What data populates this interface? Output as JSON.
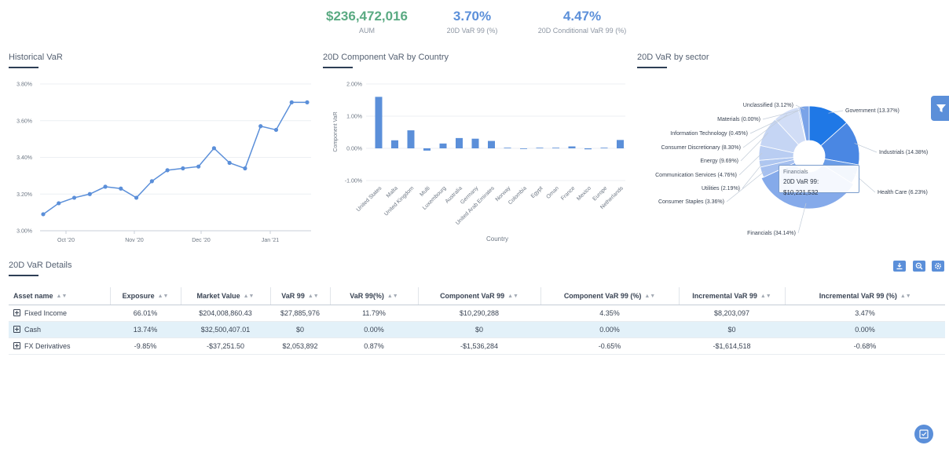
{
  "kpis": [
    {
      "value": "$236,472,016",
      "label": "AUM",
      "color": "#5aaa82"
    },
    {
      "value": "3.70%",
      "label": "20D VaR 99 (%)",
      "color": "#5b8fd9"
    },
    {
      "value": "4.47%",
      "label": "20D Conditional VaR 99 (%)",
      "color": "#5b8fd9"
    }
  ],
  "icons": {
    "filter": "filter-icon",
    "download": "download-icon",
    "zoom": "zoom-icon",
    "settings": "gear-icon",
    "checklist": "checklist-icon"
  },
  "chart_data": [
    {
      "type": "line",
      "title": "Historical VaR",
      "x_ticks": [
        "Oct '20",
        "Nov '20",
        "Dec '20",
        "Jan '21"
      ],
      "y_ticks": [
        "3.80%",
        "3.60%",
        "3.40%",
        "3.20%",
        "3.00%"
      ],
      "ylim": [
        3.0,
        3.8
      ],
      "grid": true,
      "series": [
        {
          "values": [
            3.09,
            3.15,
            3.18,
            3.2,
            3.24,
            3.23,
            3.18,
            3.27,
            3.33,
            3.34,
            3.35,
            3.45,
            3.37,
            3.34,
            3.57,
            3.55,
            3.7,
            3.7
          ],
          "color": "#5b8fd9"
        }
      ]
    },
    {
      "type": "bar",
      "title": "20D Component VaR by Country",
      "xlabel": "Country",
      "ylabel": "Component VaR",
      "y_ticks": [
        "2.00%",
        "1.00%",
        "0.00%",
        "-1.00%"
      ],
      "ylim": [
        -1.0,
        2.0
      ],
      "grid": true,
      "categories": [
        "United States",
        "Malta",
        "United Kingdom",
        "Multi",
        "Luxembourg",
        "Australia",
        "Germany",
        "United Arab Emirates",
        "Norway",
        "Colombia",
        "Egypt",
        "Oman",
        "France",
        "Mexico",
        "Europe",
        "Netherlands"
      ],
      "values": [
        1.6,
        0.25,
        0.56,
        -0.07,
        0.15,
        0.32,
        0.3,
        0.23,
        0.0,
        -0.01,
        0.0,
        0.0,
        0.06,
        -0.03,
        0.0,
        0.26
      ],
      "color": "#5b8fd9"
    },
    {
      "type": "pie",
      "title": "20D VaR by sector",
      "slices": [
        {
          "label": "Government (13.37%)",
          "value": 13.37,
          "color": "#1f78e6"
        },
        {
          "label": "Industrials (14.38%)",
          "value": 14.38,
          "color": "#4a87e3"
        },
        {
          "label": "Health Care (6.23%)",
          "value": 6.23,
          "color": "#6a9ce6"
        },
        {
          "label": "Financials (34.14%)",
          "value": 34.14,
          "color": "#85aaea"
        },
        {
          "label": "Consumer Staples (3.36%)",
          "value": 3.36,
          "color": "#a6c0ef"
        },
        {
          "label": "Utilities (2.19%)",
          "value": 2.19,
          "color": "#aec6f0"
        },
        {
          "label": "Communication Services (4.76%)",
          "value": 4.76,
          "color": "#b9cdf2"
        },
        {
          "label": "Energy (9.69%)",
          "value": 9.69,
          "color": "#c5d5f4"
        },
        {
          "label": "Consumer Discretionary (8.30%)",
          "value": 8.3,
          "color": "#d1ddf6"
        },
        {
          "label": "Information Technology (0.45%)",
          "value": 0.45,
          "color": "#9bb7ec"
        },
        {
          "label": "Materials (0.00%)",
          "value": 0.0,
          "color": "#9bb7ec"
        },
        {
          "label": "Unclassified (3.12%)",
          "value": 3.12,
          "color": "#7aa3e8"
        }
      ]
    }
  ],
  "tooltip": {
    "name": "Financials",
    "value": "20D VaR 99: $10,221,532"
  },
  "details": {
    "title": "20D VaR Details",
    "columns": [
      "Asset name",
      "Exposure",
      "Market Value",
      "VaR 99",
      "VaR 99(%)",
      "Component VaR 99",
      "Component VaR 99 (%)",
      "Incremental VaR 99",
      "Incremental VaR 99 (%)"
    ],
    "rows": [
      [
        "Fixed Income",
        "66.01%",
        "$204,008,860.43",
        "$27,885,976",
        "11.79%",
        "$10,290,288",
        "4.35%",
        "$8,203,097",
        "3.47%"
      ],
      [
        "Cash",
        "13.74%",
        "$32,500,407.01",
        "$0",
        "0.00%",
        "$0",
        "0.00%",
        "$0",
        "0.00%"
      ],
      [
        "FX Derivatives",
        "-9.85%",
        "-$37,251.50",
        "$2,053,892",
        "0.87%",
        "-$1,536,284",
        "-0.65%",
        "-$1,614,518",
        "-0.68%"
      ]
    ]
  }
}
